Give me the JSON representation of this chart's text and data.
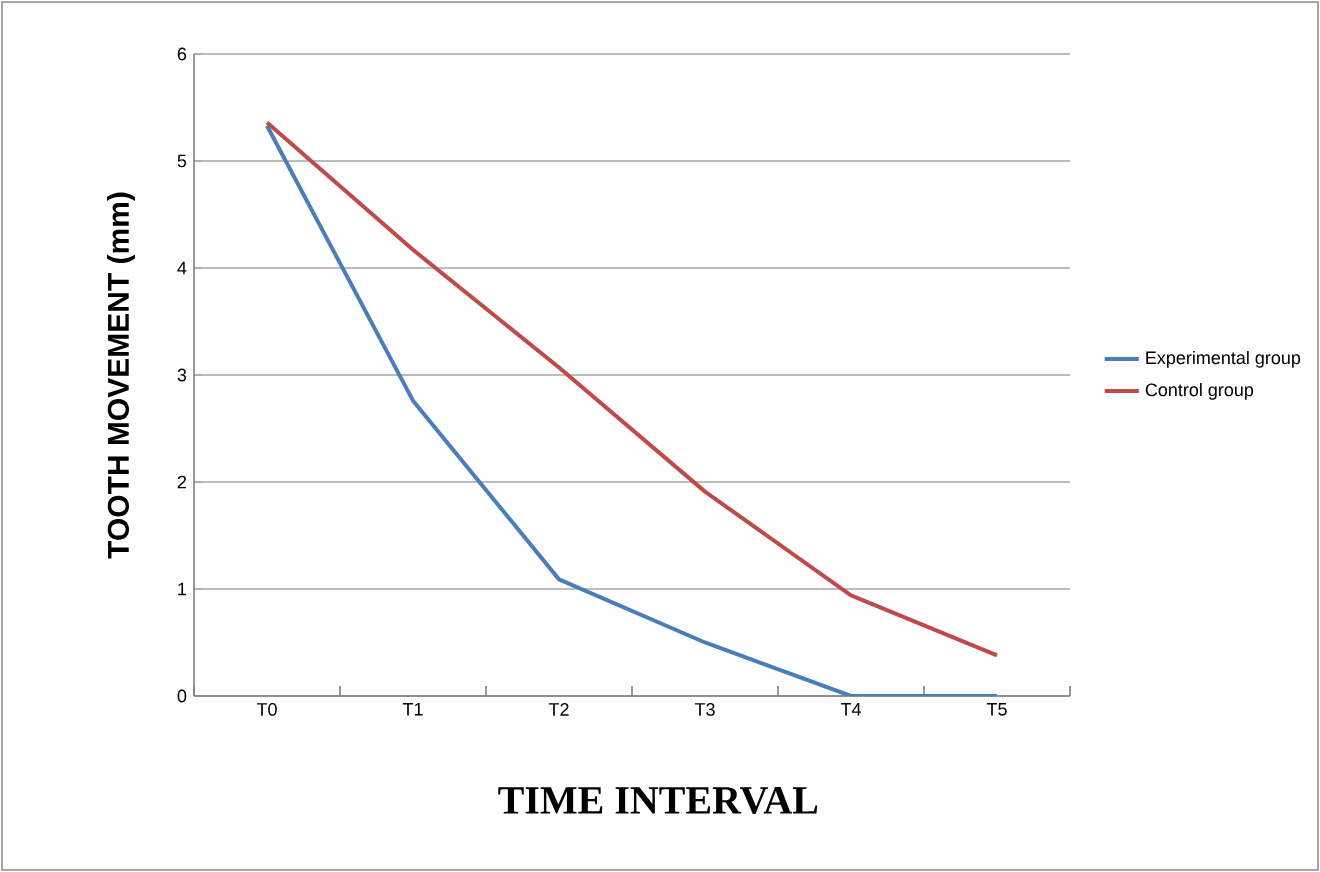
{
  "chart_data": {
    "type": "line",
    "xlabel": "TIME INTERVAL",
    "ylabel": "TOOTH MOVEMENT (mm)",
    "categories": [
      "T0",
      "T1",
      "T2",
      "T3",
      "T4",
      "T5"
    ],
    "series": [
      {
        "name": "Experimental group",
        "color": "#4a7ebb",
        "values": [
          5.33,
          2.76,
          1.09,
          0.5,
          0,
          0
        ]
      },
      {
        "name": "Control group",
        "color": "#be4b48",
        "values": [
          5.36,
          4.17,
          3.07,
          1.91,
          0.94,
          0.38
        ]
      }
    ],
    "ylim": [
      0,
      6
    ],
    "yticks": [
      0,
      1,
      2,
      3,
      4,
      5,
      6
    ],
    "grid": "y",
    "legend": "right",
    "marker": "none",
    "line_style": "solid"
  }
}
